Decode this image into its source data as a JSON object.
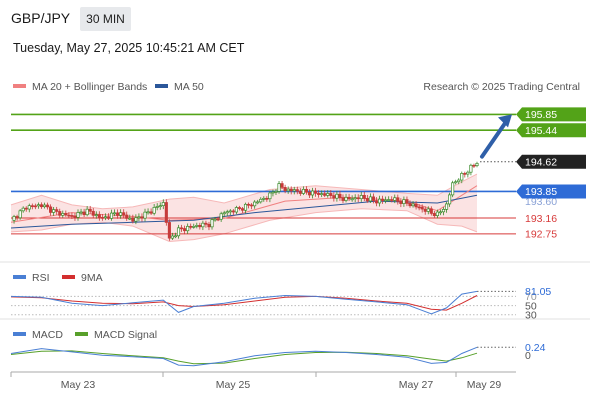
{
  "header": {
    "symbol": "GBP/JPY",
    "timeframe": "30 MIN",
    "datetime": "Tuesday, May 27, 2025 10:45:21 AM CET"
  },
  "colors": {
    "green": "#53a318",
    "blue": "#2e6bd6",
    "red": "#d73a3a",
    "arrow": "#2f5fa8",
    "bollinger_fill": "#fbe3e3",
    "candle_up": "#3a8a2a",
    "candle_down": "#c63a3a"
  },
  "chart_data": [
    {
      "type": "candlestick",
      "legend": [
        {
          "label": "MA 20 + Bollinger Bands",
          "color": "#f08080"
        },
        {
          "label": "MA 50",
          "color": "#2b579a"
        }
      ],
      "credit": "Research © 2025 Trading Central",
      "x_tick_labels": [
        "May 23",
        "May 25",
        "May 27",
        "May 29"
      ],
      "ylim": [
        192.2,
        196.25
      ],
      "levels": [
        {
          "value": 195.85,
          "label": "195.85",
          "kind": "resistance",
          "color": "#53a318"
        },
        {
          "value": 195.44,
          "label": "195.44",
          "kind": "resistance",
          "color": "#53a318"
        },
        {
          "value": 193.85,
          "label": "193.85",
          "kind": "pivot",
          "color": "#2e6bd6"
        },
        {
          "value": 193.16,
          "label": "193.16",
          "kind": "support",
          "color": "#d73a3a"
        },
        {
          "value": 192.75,
          "label": "192.75",
          "kind": "support",
          "color": "#d73a3a"
        }
      ],
      "last_price": {
        "value": 194.62,
        "label": "194.62"
      },
      "hidden_label": "193.60",
      "close_path": [
        [
          0,
          193.1
        ],
        [
          5,
          193.45
        ],
        [
          10,
          193.5
        ],
        [
          15,
          193.3
        ],
        [
          20,
          193.2
        ],
        [
          25,
          193.35
        ],
        [
          30,
          193.15
        ],
        [
          35,
          193.3
        ],
        [
          40,
          193.1
        ],
        [
          45,
          193.3
        ],
        [
          50,
          193.55
        ],
        [
          52,
          192.6
        ],
        [
          55,
          192.85
        ],
        [
          60,
          192.95
        ],
        [
          65,
          193.0
        ],
        [
          70,
          193.3
        ],
        [
          75,
          193.4
        ],
        [
          80,
          193.55
        ],
        [
          85,
          193.75
        ],
        [
          88,
          194.0
        ],
        [
          90,
          193.9
        ],
        [
          95,
          193.85
        ],
        [
          100,
          193.8
        ],
        [
          105,
          193.75
        ],
        [
          110,
          193.65
        ],
        [
          115,
          193.7
        ],
        [
          120,
          193.6
        ],
        [
          125,
          193.65
        ],
        [
          130,
          193.55
        ],
        [
          135,
          193.4
        ],
        [
          138,
          193.3
        ],
        [
          140,
          193.25
        ],
        [
          143,
          193.5
        ],
        [
          145,
          194.05
        ],
        [
          148,
          194.25
        ],
        [
          150,
          194.4
        ],
        [
          153,
          194.6
        ]
      ],
      "ma20_path": [
        [
          0,
          193.05
        ],
        [
          20,
          193.3
        ],
        [
          40,
          193.2
        ],
        [
          52,
          193.1
        ],
        [
          70,
          193.15
        ],
        [
          90,
          193.6
        ],
        [
          110,
          193.7
        ],
        [
          130,
          193.6
        ],
        [
          140,
          193.35
        ],
        [
          153,
          194.0
        ]
      ],
      "ma50_path": [
        [
          0,
          192.9
        ],
        [
          20,
          193.0
        ],
        [
          40,
          193.05
        ],
        [
          60,
          193.1
        ],
        [
          80,
          193.3
        ],
        [
          100,
          193.45
        ],
        [
          120,
          193.6
        ],
        [
          140,
          193.55
        ],
        [
          153,
          193.75
        ]
      ],
      "bb_upper_path": [
        [
          0,
          193.5
        ],
        [
          10,
          193.75
        ],
        [
          20,
          193.5
        ],
        [
          30,
          193.4
        ],
        [
          40,
          193.45
        ],
        [
          52,
          193.65
        ],
        [
          60,
          193.7
        ],
        [
          70,
          193.55
        ],
        [
          85,
          193.9
        ],
        [
          100,
          194.0
        ],
        [
          115,
          193.9
        ],
        [
          130,
          193.8
        ],
        [
          140,
          193.75
        ],
        [
          148,
          194.1
        ],
        [
          153,
          194.3
        ]
      ],
      "bb_lower_path": [
        [
          0,
          192.8
        ],
        [
          10,
          192.85
        ],
        [
          20,
          193.0
        ],
        [
          30,
          193.05
        ],
        [
          40,
          192.95
        ],
        [
          52,
          192.55
        ],
        [
          60,
          192.6
        ],
        [
          70,
          192.75
        ],
        [
          85,
          193.1
        ],
        [
          100,
          193.3
        ],
        [
          115,
          193.4
        ],
        [
          130,
          193.35
        ],
        [
          140,
          193.0
        ],
        [
          148,
          192.95
        ],
        [
          153,
          192.8
        ]
      ],
      "arrow": {
        "from": [
          153,
          194.65
        ],
        "to": [
          165,
          195.85
        ]
      }
    },
    {
      "type": "line",
      "panel": "RSI",
      "legend": [
        {
          "label": "RSI",
          "color": "#4a7fd4"
        },
        {
          "label": "9MA",
          "color": "#d32f2f"
        }
      ],
      "ylim": [
        25,
        95
      ],
      "levels": [
        {
          "value": 81.05,
          "label": "81.05",
          "kind": "current"
        },
        {
          "value": 50,
          "label": "50",
          "kind": "midline"
        },
        {
          "value": 30,
          "label": "30",
          "kind": "oversold"
        }
      ],
      "hidden_label": "70",
      "rsi_path": [
        [
          0,
          70
        ],
        [
          10,
          68
        ],
        [
          20,
          55
        ],
        [
          30,
          50
        ],
        [
          40,
          56
        ],
        [
          50,
          62
        ],
        [
          55,
          35
        ],
        [
          60,
          48
        ],
        [
          70,
          55
        ],
        [
          80,
          66
        ],
        [
          90,
          72
        ],
        [
          100,
          70
        ],
        [
          110,
          64
        ],
        [
          120,
          58
        ],
        [
          130,
          52
        ],
        [
          138,
          32
        ],
        [
          143,
          45
        ],
        [
          148,
          75
        ],
        [
          153,
          81.05
        ]
      ],
      "ma9_path": [
        [
          0,
          69
        ],
        [
          10,
          67
        ],
        [
          20,
          60
        ],
        [
          30,
          55
        ],
        [
          40,
          54
        ],
        [
          50,
          58
        ],
        [
          55,
          50
        ],
        [
          60,
          48
        ],
        [
          70,
          52
        ],
        [
          80,
          60
        ],
        [
          90,
          68
        ],
        [
          100,
          70
        ],
        [
          110,
          66
        ],
        [
          120,
          60
        ],
        [
          130,
          55
        ],
        [
          138,
          42
        ],
        [
          143,
          40
        ],
        [
          148,
          55
        ],
        [
          153,
          72
        ]
      ]
    },
    {
      "type": "line",
      "panel": "MACD",
      "legend": [
        {
          "label": "MACD",
          "color": "#4a7fd4"
        },
        {
          "label": "MACD Signal",
          "color": "#58a02a"
        }
      ],
      "ylim": [
        -0.45,
        0.4
      ],
      "levels": [
        {
          "value": 0.24,
          "label": "0.24",
          "kind": "current"
        },
        {
          "value": 0,
          "label": "0",
          "kind": "zero"
        }
      ],
      "macd_path": [
        [
          0,
          0.05
        ],
        [
          10,
          0.2
        ],
        [
          20,
          0.1
        ],
        [
          30,
          0.0
        ],
        [
          40,
          -0.05
        ],
        [
          50,
          -0.1
        ],
        [
          55,
          -0.3
        ],
        [
          60,
          -0.32
        ],
        [
          70,
          -0.2
        ],
        [
          80,
          -0.02
        ],
        [
          90,
          0.08
        ],
        [
          100,
          0.12
        ],
        [
          110,
          0.08
        ],
        [
          120,
          0.02
        ],
        [
          130,
          -0.06
        ],
        [
          138,
          -0.25
        ],
        [
          143,
          -0.22
        ],
        [
          148,
          0.05
        ],
        [
          153,
          0.24
        ]
      ],
      "signal_path": [
        [
          0,
          0.02
        ],
        [
          10,
          0.12
        ],
        [
          20,
          0.13
        ],
        [
          30,
          0.05
        ],
        [
          40,
          -0.02
        ],
        [
          50,
          -0.08
        ],
        [
          55,
          -0.18
        ],
        [
          60,
          -0.26
        ],
        [
          70,
          -0.24
        ],
        [
          80,
          -0.1
        ],
        [
          90,
          0.02
        ],
        [
          100,
          0.08
        ],
        [
          110,
          0.09
        ],
        [
          120,
          0.05
        ],
        [
          130,
          -0.02
        ],
        [
          138,
          -0.12
        ],
        [
          143,
          -0.18
        ],
        [
          148,
          -0.08
        ],
        [
          153,
          0.06
        ]
      ]
    }
  ]
}
